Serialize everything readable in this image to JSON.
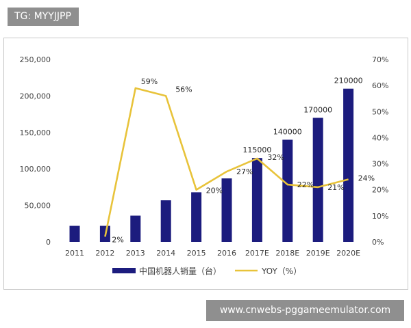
{
  "header": {
    "tag": "TG: MYYJJPP"
  },
  "footer": {
    "link": "www.cnwebs-pggameemulator.com"
  },
  "chart_data": {
    "type": "bar+line",
    "categories": [
      "2011",
      "2012",
      "2013",
      "2014",
      "2015",
      "2016",
      "2017E",
      "2018E",
      "2019E",
      "2020E"
    ],
    "series": [
      {
        "name": "中国机器人销量（台）",
        "type": "bar",
        "axis": "left",
        "color": "#1c1c7e",
        "values": [
          22000,
          22000,
          36000,
          57000,
          68000,
          87000,
          115000,
          140000,
          170000,
          210000
        ],
        "labels": [
          "",
          "",
          "",
          "",
          "",
          "",
          "115000",
          "140000",
          "170000",
          "210000"
        ]
      },
      {
        "name": "YOY（%）",
        "type": "line",
        "axis": "right",
        "color": "#e8c33a",
        "values": [
          null,
          2,
          59,
          56,
          20,
          27,
          32,
          22,
          21,
          24
        ],
        "labels": [
          "",
          "2%",
          "59%",
          "56%",
          "20%",
          "27%",
          "32%",
          "22%",
          "21%",
          "24%"
        ]
      }
    ],
    "y_left": {
      "min": 0,
      "max": 250000,
      "ticks": [
        "0",
        "50,000",
        "100,000",
        "150,000",
        "200,000",
        "250,000"
      ]
    },
    "y_right": {
      "min": 0,
      "max": 70,
      "ticks": [
        "0%",
        "10%",
        "20%",
        "30%",
        "40%",
        "50%",
        "60%",
        "70%"
      ]
    },
    "grid": false,
    "legend": "bottom"
  }
}
